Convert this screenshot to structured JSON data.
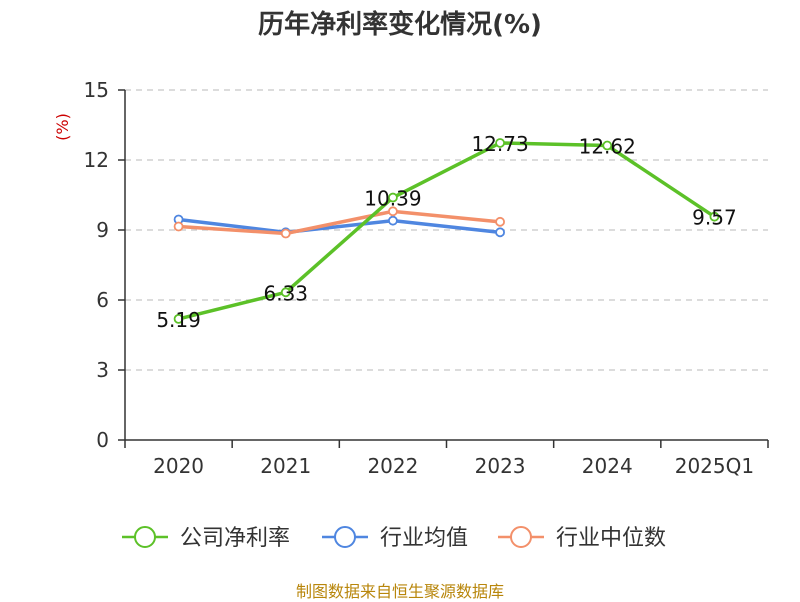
{
  "chart_data": {
    "type": "line",
    "title": "历年净利率变化情况(%)",
    "ylabel": "(%)",
    "xlabel": "",
    "categories": [
      "2020",
      "2021",
      "2022",
      "2023",
      "2024",
      "2025Q1"
    ],
    "ylim": [
      0,
      15
    ],
    "yticks": [
      "0",
      "3",
      "6",
      "9",
      "12",
      "15"
    ],
    "grid": true,
    "legend_position": "bottom",
    "series": [
      {
        "name": "公司净利率",
        "color": "#5cc128",
        "values": [
          5.19,
          6.33,
          10.39,
          12.73,
          12.62,
          9.57
        ],
        "labels": [
          "5.19",
          "6.33",
          "10.39",
          "12.73",
          "12.62",
          "9.57"
        ]
      },
      {
        "name": "行业均值",
        "color": "#4f86e0",
        "values": [
          9.45,
          8.9,
          9.4,
          8.9,
          null,
          null
        ]
      },
      {
        "name": "行业中位数",
        "color": "#f3906a",
        "values": [
          9.15,
          8.85,
          9.8,
          9.35,
          null,
          null
        ]
      }
    ]
  },
  "source_text": "制图数据来自恒生聚源数据库"
}
